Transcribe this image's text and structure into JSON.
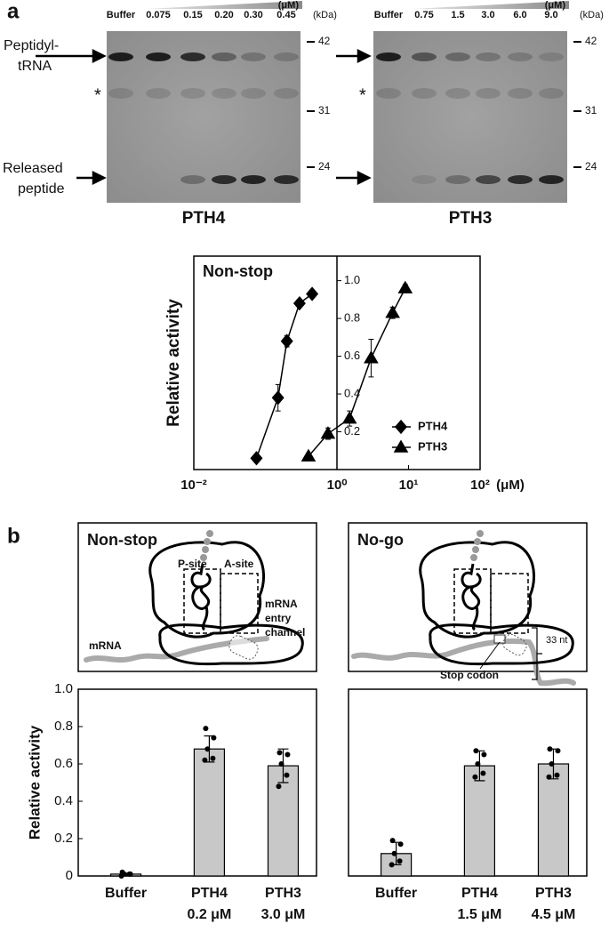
{
  "panel_labels": [
    "a",
    "b"
  ],
  "gels": [
    {
      "lane_labels": [
        "Buffer",
        "0.075",
        "0.15",
        "0.20",
        "0.30",
        "0.45"
      ],
      "unit": "(μM)",
      "size_unit": "(kDa)",
      "markers": [
        "42",
        "31",
        "24"
      ],
      "name": "PTH4",
      "left_labels": [
        "Peptidyl-",
        "tRNA",
        "*",
        "Released",
        "peptide"
      ]
    },
    {
      "lane_labels": [
        "Buffer",
        "0.75",
        "1.5",
        "3.0",
        "6.0",
        "9.0"
      ],
      "unit": "(μM)",
      "size_unit": "(kDa)",
      "markers": [
        "42",
        "31",
        "24"
      ],
      "name": "PTH3",
      "left_labels": [
        "*"
      ]
    }
  ],
  "diagrams": [
    {
      "title": "Non-stop",
      "labels": [
        "P-site",
        "A-site",
        "mRNA",
        "mRNA",
        "entry",
        "channel"
      ]
    },
    {
      "title": "No-go",
      "labels": [
        "Stop codon",
        "33 nt"
      ]
    }
  ],
  "chart_data": [
    {
      "type": "line",
      "label": "Non-stop",
      "ylabel": "Relative activity",
      "xunit": "(μM)",
      "log_x": true,
      "xlim": [
        0.01,
        100
      ],
      "xticks": [
        {
          "value": 0.01,
          "label": "10⁻²"
        },
        {
          "value": 1,
          "label": "10⁰"
        },
        {
          "value": 10,
          "label": "10¹"
        },
        {
          "value": 100,
          "label": "10²"
        }
      ],
      "ylim": [
        0,
        1.13
      ],
      "yticks": [
        0.2,
        0.4,
        0.6,
        0.8,
        {
          "value": 1,
          "label": "1.0"
        }
      ],
      "yaxis_at": 1,
      "series": [
        {
          "name": "PTH4",
          "marker": "diamond",
          "color": "#000000",
          "x": [
            0.075,
            0.15,
            0.2,
            0.3,
            0.45
          ],
          "values": [
            0.06,
            0.38,
            0.68,
            0.88,
            0.93
          ],
          "errors": [
            0.01,
            0.07,
            0.03,
            0.02,
            0.02
          ]
        },
        {
          "name": "PTH3",
          "marker": "triangle",
          "color": "#000000",
          "x": [
            0.4,
            0.75,
            1.5,
            3.0,
            6.0,
            9.0
          ],
          "values": [
            0.07,
            0.19,
            0.27,
            0.59,
            0.83,
            0.96
          ],
          "errors": [
            0.01,
            0.03,
            0.04,
            0.1,
            0.03,
            0.02
          ]
        }
      ]
    },
    {
      "type": "bar",
      "ylabel": "Relative activity",
      "categories": [
        "Buffer",
        "PTH4",
        "PTH3"
      ],
      "sublabels": [
        null,
        "0.2 μM",
        "3.0 μM"
      ],
      "values": [
        0.01,
        0.68,
        0.59
      ],
      "errors": [
        0.005,
        0.07,
        0.09
      ],
      "points": [
        [
          0.0,
          0.01,
          0.01,
          0.01,
          0.02
        ],
        [
          0.62,
          0.63,
          0.68,
          0.74,
          0.79
        ],
        [
          0.48,
          0.54,
          0.6,
          0.65,
          0.66
        ]
      ],
      "color": "#c8c8c8",
      "ylim": [
        0,
        1
      ],
      "yticks": [
        0,
        0.2,
        0.4,
        0.6,
        0.8,
        {
          "value": 1,
          "label": "1.0"
        }
      ]
    },
    {
      "type": "bar",
      "categories": [
        "Buffer",
        "PTH4",
        "PTH3"
      ],
      "sublabels": [
        null,
        "1.5 μM",
        "4.5 μM"
      ],
      "values": [
        0.12,
        0.59,
        0.6
      ],
      "errors": [
        0.06,
        0.08,
        0.08
      ],
      "points": [
        [
          0.06,
          0.08,
          0.12,
          0.17,
          0.19
        ],
        [
          0.53,
          0.55,
          0.6,
          0.65,
          0.67
        ],
        [
          0.53,
          0.54,
          0.6,
          0.67,
          0.68
        ]
      ],
      "color": "#c8c8c8",
      "ylim": [
        0,
        1
      ]
    }
  ]
}
